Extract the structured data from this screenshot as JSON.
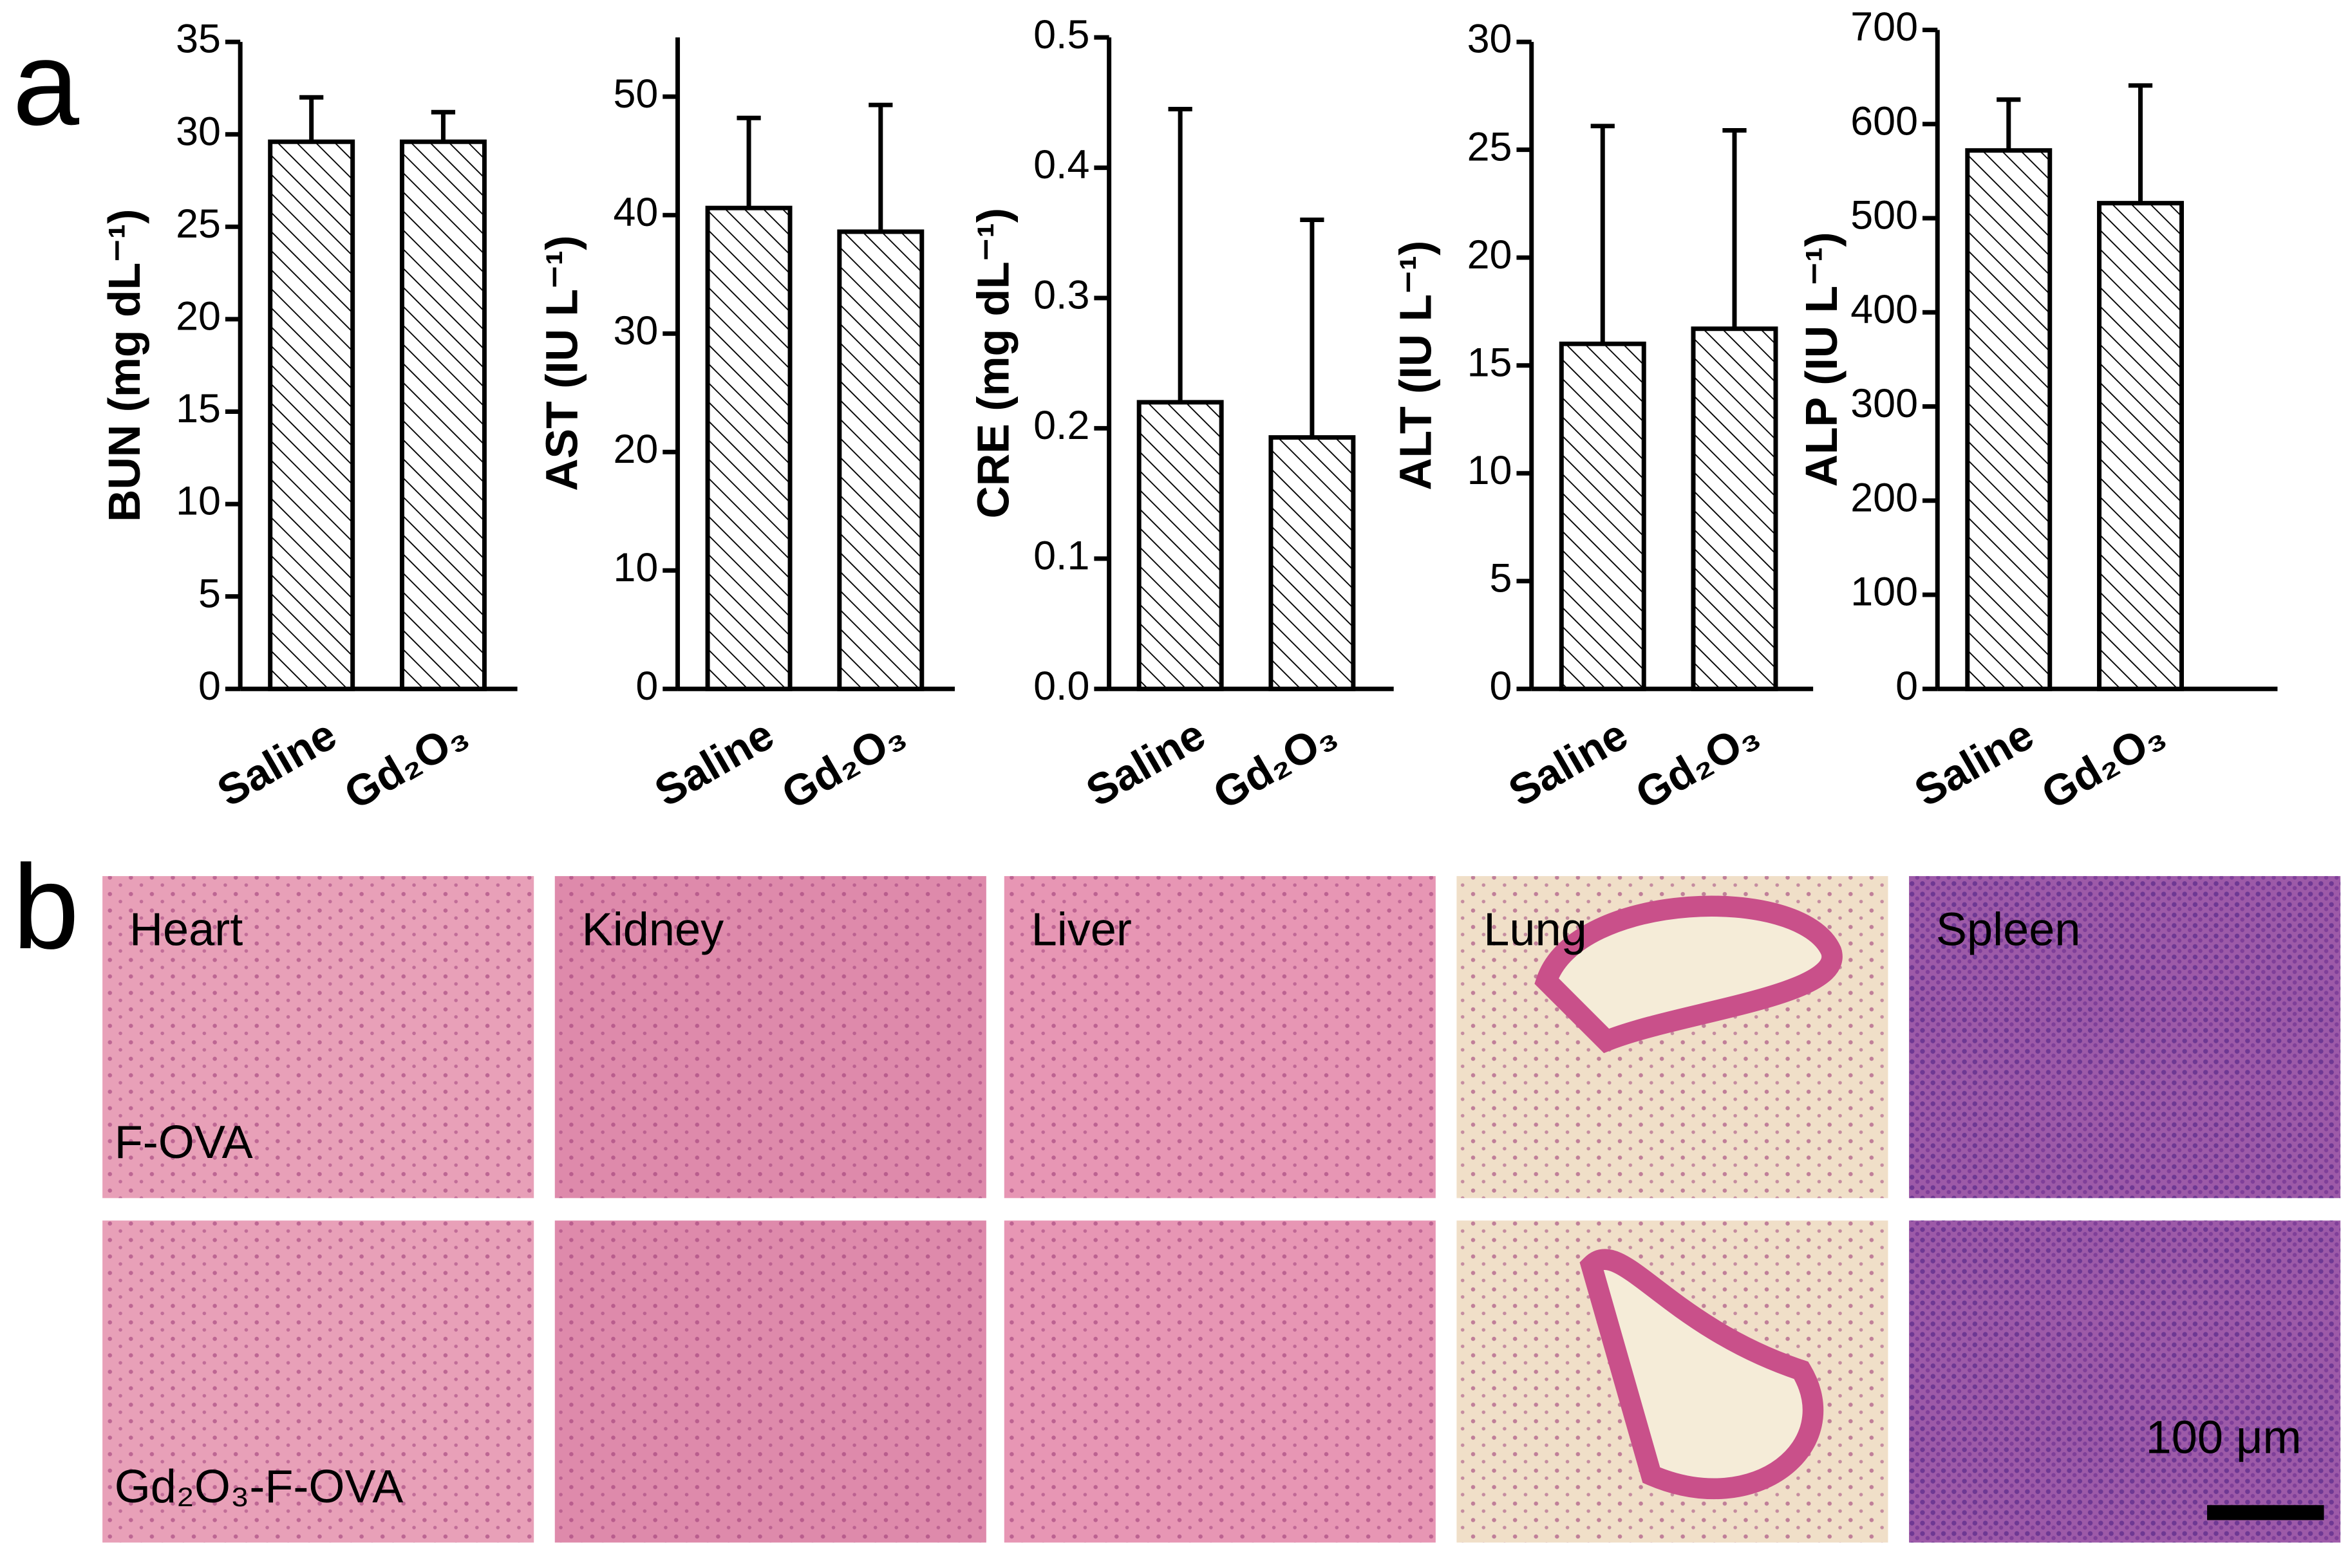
{
  "panel_labels": [
    "a",
    "b"
  ],
  "chart_data": [
    {
      "type": "bar",
      "ylabel": "BUN (mg dL⁻¹)",
      "categories": [
        "Saline",
        "Gd₂O₃"
      ],
      "values": [
        29.6,
        29.6
      ],
      "errors": [
        2.4,
        1.6
      ],
      "ylim": [
        0,
        35
      ],
      "yticks": [
        0,
        5,
        10,
        15,
        20,
        25,
        30,
        35
      ],
      "color": "#ffffff",
      "hatch": true
    },
    {
      "type": "bar",
      "ylabel": "AST (IU L⁻¹)",
      "categories": [
        "Saline",
        "Gd₂O₃"
      ],
      "values": [
        40.6,
        38.6
      ],
      "errors": [
        7.6,
        10.7
      ],
      "ylim": [
        0,
        55
      ],
      "yticks": [
        0,
        10,
        20,
        30,
        40,
        50
      ],
      "color": "#ffffff",
      "hatch": true
    },
    {
      "type": "bar",
      "ylabel": "CRE (mg dL⁻¹)",
      "categories": [
        "Saline",
        "Gd₂O₃"
      ],
      "values": [
        0.22,
        0.193
      ],
      "errors": [
        0.225,
        0.167
      ],
      "ylim": [
        0,
        0.5
      ],
      "yticks": [
        {
          "value": 0,
          "label": "0.0"
        },
        0.1,
        0.2,
        0.3,
        0.4,
        0.5
      ],
      "color": "#ffffff",
      "hatch": true
    },
    {
      "type": "bar",
      "ylabel": "ALT (IU L⁻¹)",
      "categories": [
        "Saline",
        "Gd₂O₃"
      ],
      "values": [
        16.0,
        16.7
      ],
      "errors": [
        10.1,
        9.2
      ],
      "ylim": [
        0,
        30
      ],
      "yticks": [
        0,
        5,
        10,
        15,
        20,
        25,
        30
      ],
      "color": "#ffffff",
      "hatch": true
    },
    {
      "type": "bar",
      "ylabel": "ALP (IU L⁻¹)",
      "categories": [
        "Saline",
        "Gd₂O₃"
      ],
      "values": [
        572,
        516
      ],
      "errors": [
        54,
        125
      ],
      "ylim": [
        0,
        700
      ],
      "yticks": [
        0,
        100,
        200,
        300,
        400,
        500,
        600,
        700
      ],
      "color": "#ffffff",
      "hatch": true
    }
  ],
  "histology": {
    "organs": [
      "Heart",
      "Kidney",
      "Liver",
      "Lung",
      "Spleen"
    ],
    "rows": [
      "F-OVA",
      "Gd₂O₃-F-OVA"
    ],
    "scale_bar": "100 μm"
  }
}
